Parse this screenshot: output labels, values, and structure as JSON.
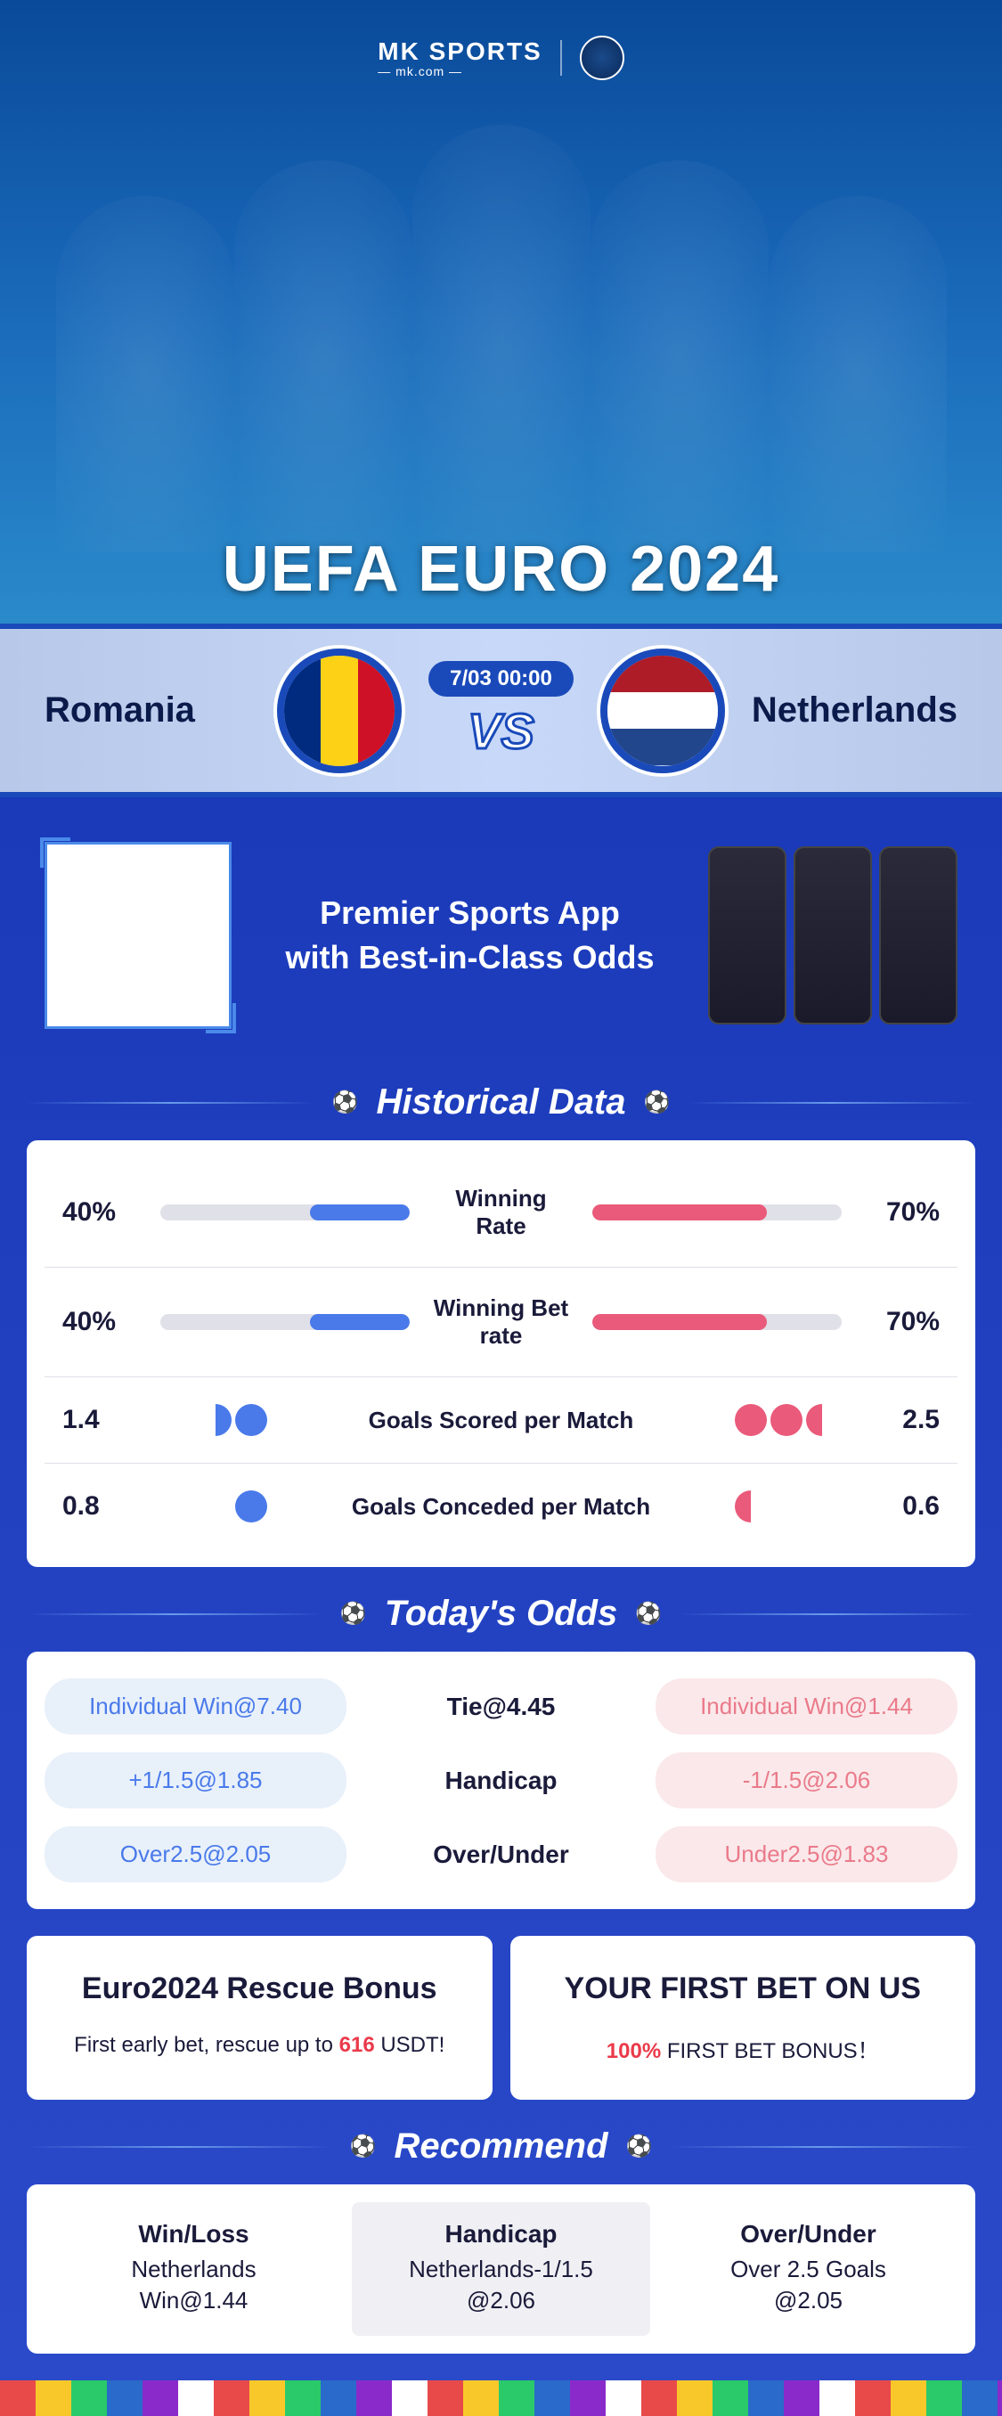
{
  "hero": {
    "logo_brand": "MK",
    "logo_label": "SPORTS",
    "logo_domain": "— mk.com —",
    "title": "UEFA EURO 2024"
  },
  "matchup": {
    "team_left": "Romania",
    "team_right": "Netherlands",
    "datetime": "7/03 00:00",
    "vs": "VS"
  },
  "promo": {
    "line1": "Premier Sports App",
    "line2": "with Best-in-Class Odds"
  },
  "sections": {
    "historical": "Historical Data",
    "odds": "Today's Odds",
    "recommend": "Recommend"
  },
  "historical": {
    "rows": [
      {
        "left": "40%",
        "label": "Winning Rate",
        "right": "70%",
        "type": "bar",
        "left_pct": 40,
        "right_pct": 70
      },
      {
        "left": "40%",
        "label": "Winning Bet rate",
        "right": "70%",
        "type": "bar",
        "left_pct": 40,
        "right_pct": 70
      },
      {
        "left": "1.4",
        "label": "Goals Scored per Match",
        "right": "2.5",
        "type": "balls",
        "left_balls": 1.5,
        "right_balls": 2.5
      },
      {
        "left": "0.8",
        "label": "Goals Conceded per Match",
        "right": "0.6",
        "type": "balls",
        "left_balls": 1,
        "right_balls": 0.5
      }
    ]
  },
  "odds": {
    "rows": [
      {
        "left": "Individual Win@7.40",
        "center": "Tie@4.45",
        "right": "Individual Win@1.44"
      },
      {
        "left": "+1/1.5@1.85",
        "center": "Handicap",
        "right": "-1/1.5@2.06"
      },
      {
        "left": "Over2.5@2.05",
        "center": "Over/Under",
        "right": "Under2.5@1.83"
      }
    ]
  },
  "bonus": {
    "left": {
      "title": "Euro2024 Rescue Bonus",
      "desc_pre": "First early bet, rescue up to ",
      "desc_hl": "616",
      "desc_post": " USDT!"
    },
    "right": {
      "title": "YOUR FIRST BET ON US",
      "desc_hl": "100%",
      "desc_post": " FIRST BET BONUS！"
    }
  },
  "recommend": {
    "cols": [
      {
        "title": "Win/Loss",
        "sub1": "Netherlands",
        "sub2": "Win@1.44"
      },
      {
        "title": "Handicap",
        "sub1": "Netherlands-1/1.5",
        "sub2": "@2.06"
      },
      {
        "title": "Over/Under",
        "sub1": "Over 2.5 Goals",
        "sub2": "@2.05"
      }
    ]
  },
  "colors": {
    "blue_bar": "#4a7aea",
    "red_bar": "#ea5a7a",
    "primary": "#1a4aba"
  }
}
